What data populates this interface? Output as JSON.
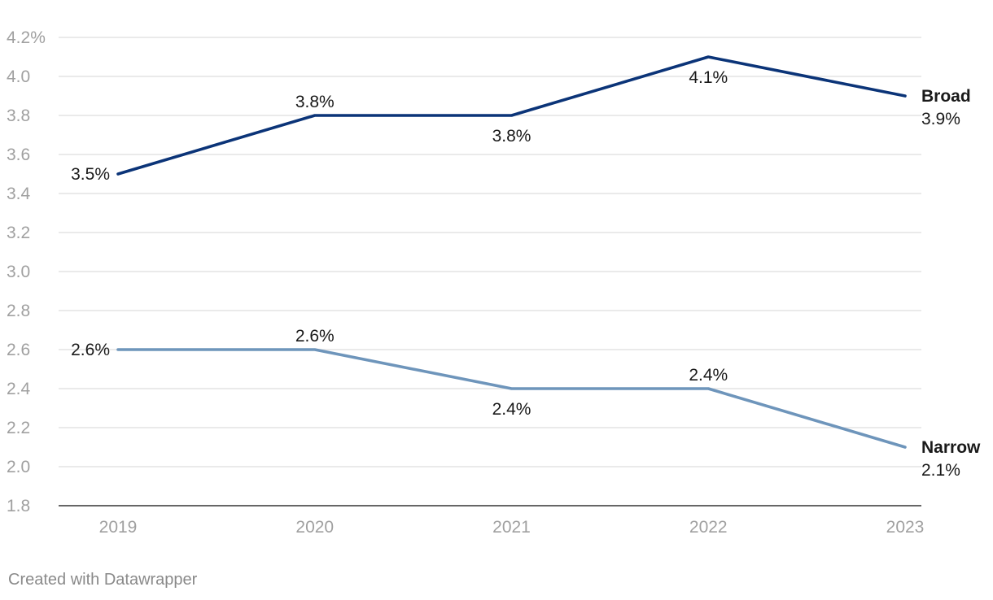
{
  "credit": "Created with Datawrapper",
  "chart_data": {
    "type": "line",
    "x": [
      "2019",
      "2020",
      "2021",
      "2022",
      "2023"
    ],
    "ylim": [
      1.8,
      4.2
    ],
    "yticks": [
      {
        "value": 4.2,
        "label": "4.2%"
      },
      {
        "value": 4.0,
        "label": "4.0"
      },
      {
        "value": 3.8,
        "label": "3.8"
      },
      {
        "value": 3.6,
        "label": "3.6"
      },
      {
        "value": 3.4,
        "label": "3.4"
      },
      {
        "value": 3.2,
        "label": "3.2"
      },
      {
        "value": 3.0,
        "label": "3.0"
      },
      {
        "value": 2.8,
        "label": "2.8"
      },
      {
        "value": 2.6,
        "label": "2.6"
      },
      {
        "value": 2.4,
        "label": "2.4"
      },
      {
        "value": 2.2,
        "label": "2.2"
      },
      {
        "value": 2.0,
        "label": "2.0"
      },
      {
        "value": 1.8,
        "label": "1.8"
      }
    ],
    "grid": true,
    "series": [
      {
        "name": "Broad",
        "color": "#0b3478",
        "values": [
          3.5,
          3.8,
          3.8,
          4.1,
          3.9
        ],
        "labels": [
          "3.5%",
          "3.8%",
          "3.8%",
          "4.1%",
          "3.9%"
        ],
        "label_positions": [
          "left",
          "above",
          "below",
          "below",
          "right"
        ]
      },
      {
        "name": "Narrow",
        "color": "#6e95bb",
        "values": [
          2.6,
          2.6,
          2.4,
          2.4,
          2.1
        ],
        "labels": [
          "2.6%",
          "2.6%",
          "2.4%",
          "2.4%",
          "2.1%"
        ],
        "label_positions": [
          "left",
          "above",
          "below",
          "above",
          "right"
        ]
      }
    ]
  }
}
